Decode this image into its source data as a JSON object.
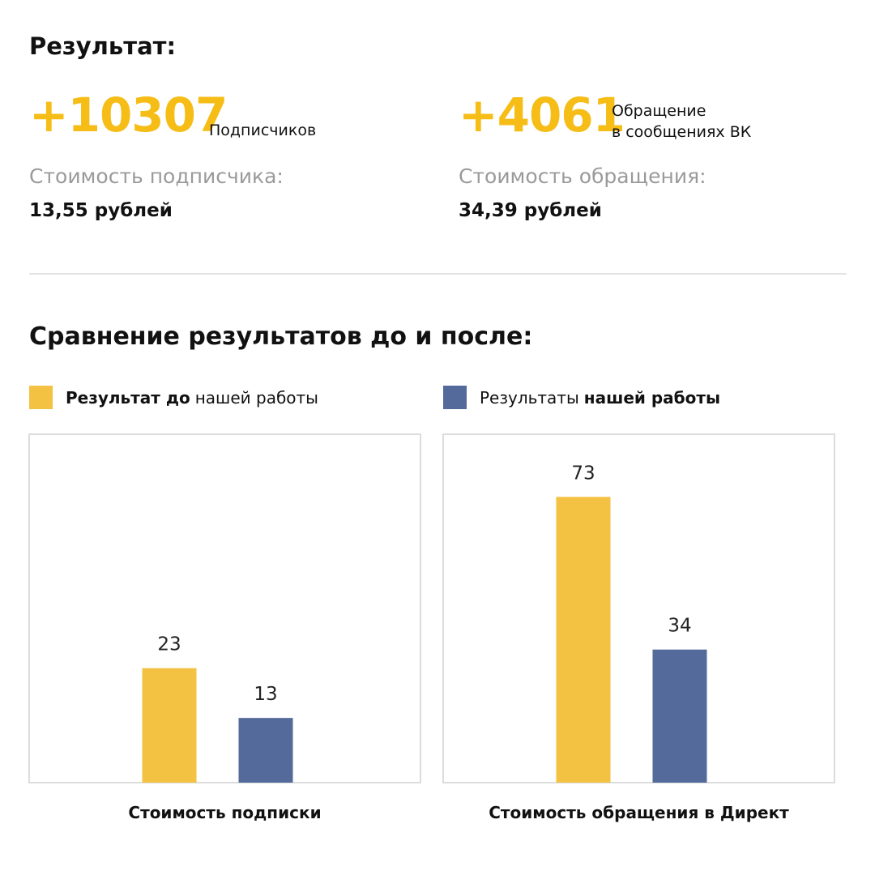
{
  "header": {
    "title": "Результат:"
  },
  "stats": [
    {
      "value": "+10307",
      "caption": [
        "Подписчиков"
      ],
      "cost_label": "Стоимость подписчика:",
      "cost": "13,55 рублей"
    },
    {
      "value": "+4061",
      "caption": [
        "Обращение",
        "в сообщениях ВК"
      ],
      "cost_label": "Стоимость обращения:",
      "cost": "34,39 рублей"
    }
  ],
  "comparison_title": "Сравнение результатов до и после:",
  "legend": [
    {
      "color": "#f4c242",
      "parts": [
        {
          "text": "Результат до",
          "bold": true
        },
        {
          "text": "нашей работы",
          "bold": false
        }
      ]
    },
    {
      "color": "#536a9a",
      "parts": [
        {
          "text": "Результаты",
          "bold": false
        },
        {
          "text": "нашей работы",
          "bold": true
        }
      ]
    }
  ],
  "chart_data": [
    {
      "type": "bar",
      "x_label": "Стоимость подписки",
      "ylim": [
        0,
        70
      ],
      "series": [
        {
          "color": "#f4c242",
          "values": [
            23
          ]
        },
        {
          "color": "#536a9a",
          "values": [
            13
          ]
        }
      ]
    },
    {
      "type": "bar",
      "x_label": "Стоимость обращения в Директ",
      "ylim": [
        0,
        89
      ],
      "series": [
        {
          "color": "#f4c242",
          "values": [
            73
          ]
        },
        {
          "color": "#536a9a",
          "values": [
            34
          ]
        }
      ]
    }
  ]
}
